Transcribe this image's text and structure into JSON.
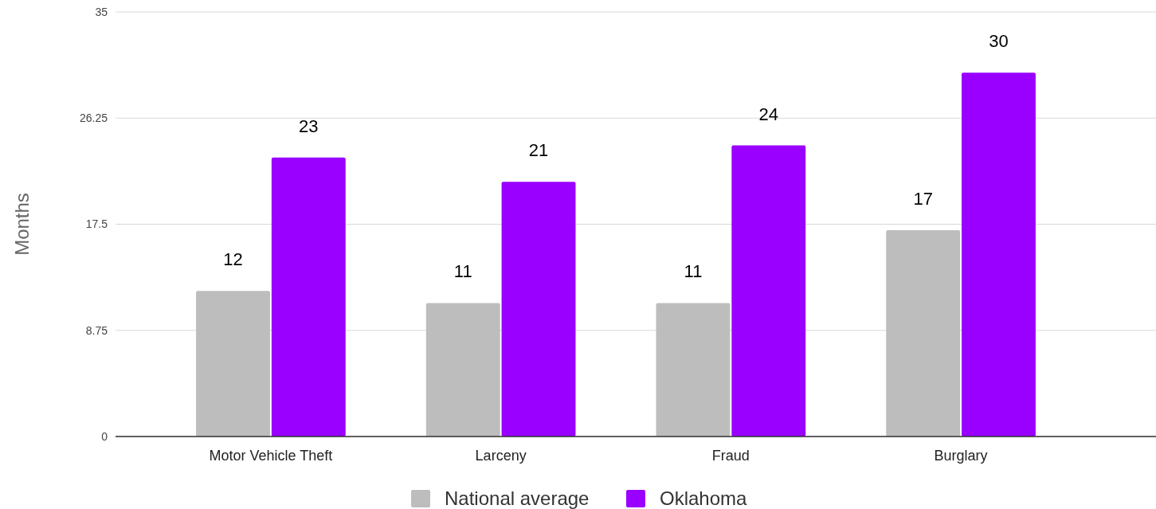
{
  "chart_data": {
    "type": "bar",
    "ylabel": "Months",
    "categories": [
      "Motor Vehicle Theft",
      "Larceny",
      "Fraud",
      "Burglary"
    ],
    "series": [
      {
        "name": "National average",
        "color": "#bdbdbd",
        "values": [
          12,
          11,
          11,
          17
        ]
      },
      {
        "name": "Oklahoma",
        "color": "#9900ff",
        "values": [
          23,
          21,
          24,
          30
        ]
      }
    ],
    "ylim": [
      0,
      35
    ],
    "yticks": [
      0,
      8.75,
      17.5,
      26.25,
      35
    ],
    "grid": "y",
    "legend": "bottom",
    "data_labels": true
  }
}
